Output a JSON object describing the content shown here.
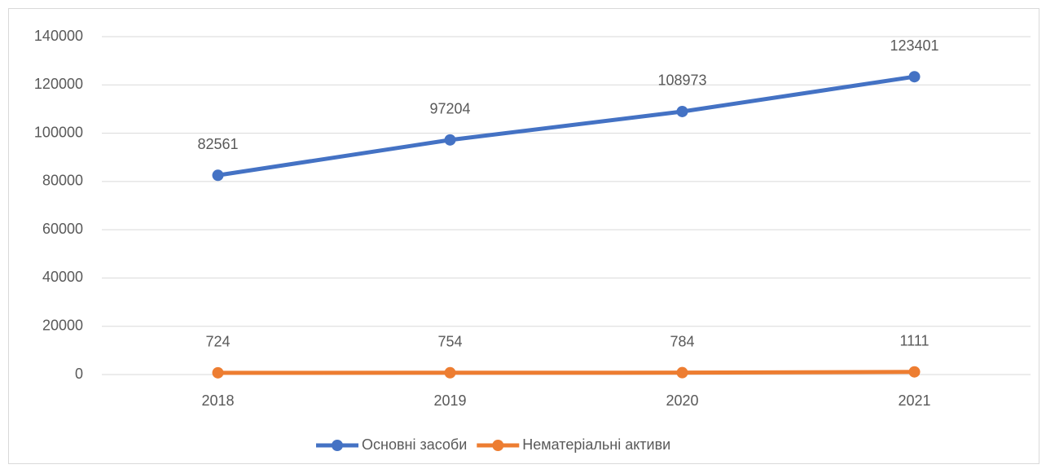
{
  "chart_data": {
    "type": "line",
    "categories": [
      "2018",
      "2019",
      "2020",
      "2021"
    ],
    "series": [
      {
        "name": "Основні засоби",
        "color": "#4472c4",
        "values": [
          82561,
          97204,
          108973,
          123401
        ]
      },
      {
        "name": "Нематеріальні активи",
        "color": "#ed7d31",
        "values": [
          724,
          754,
          784,
          1111
        ]
      }
    ],
    "ylim": [
      0,
      140000
    ],
    "yticks": [
      0,
      20000,
      40000,
      60000,
      80000,
      100000,
      120000,
      140000
    ],
    "grid": true,
    "legend": "bottom"
  }
}
